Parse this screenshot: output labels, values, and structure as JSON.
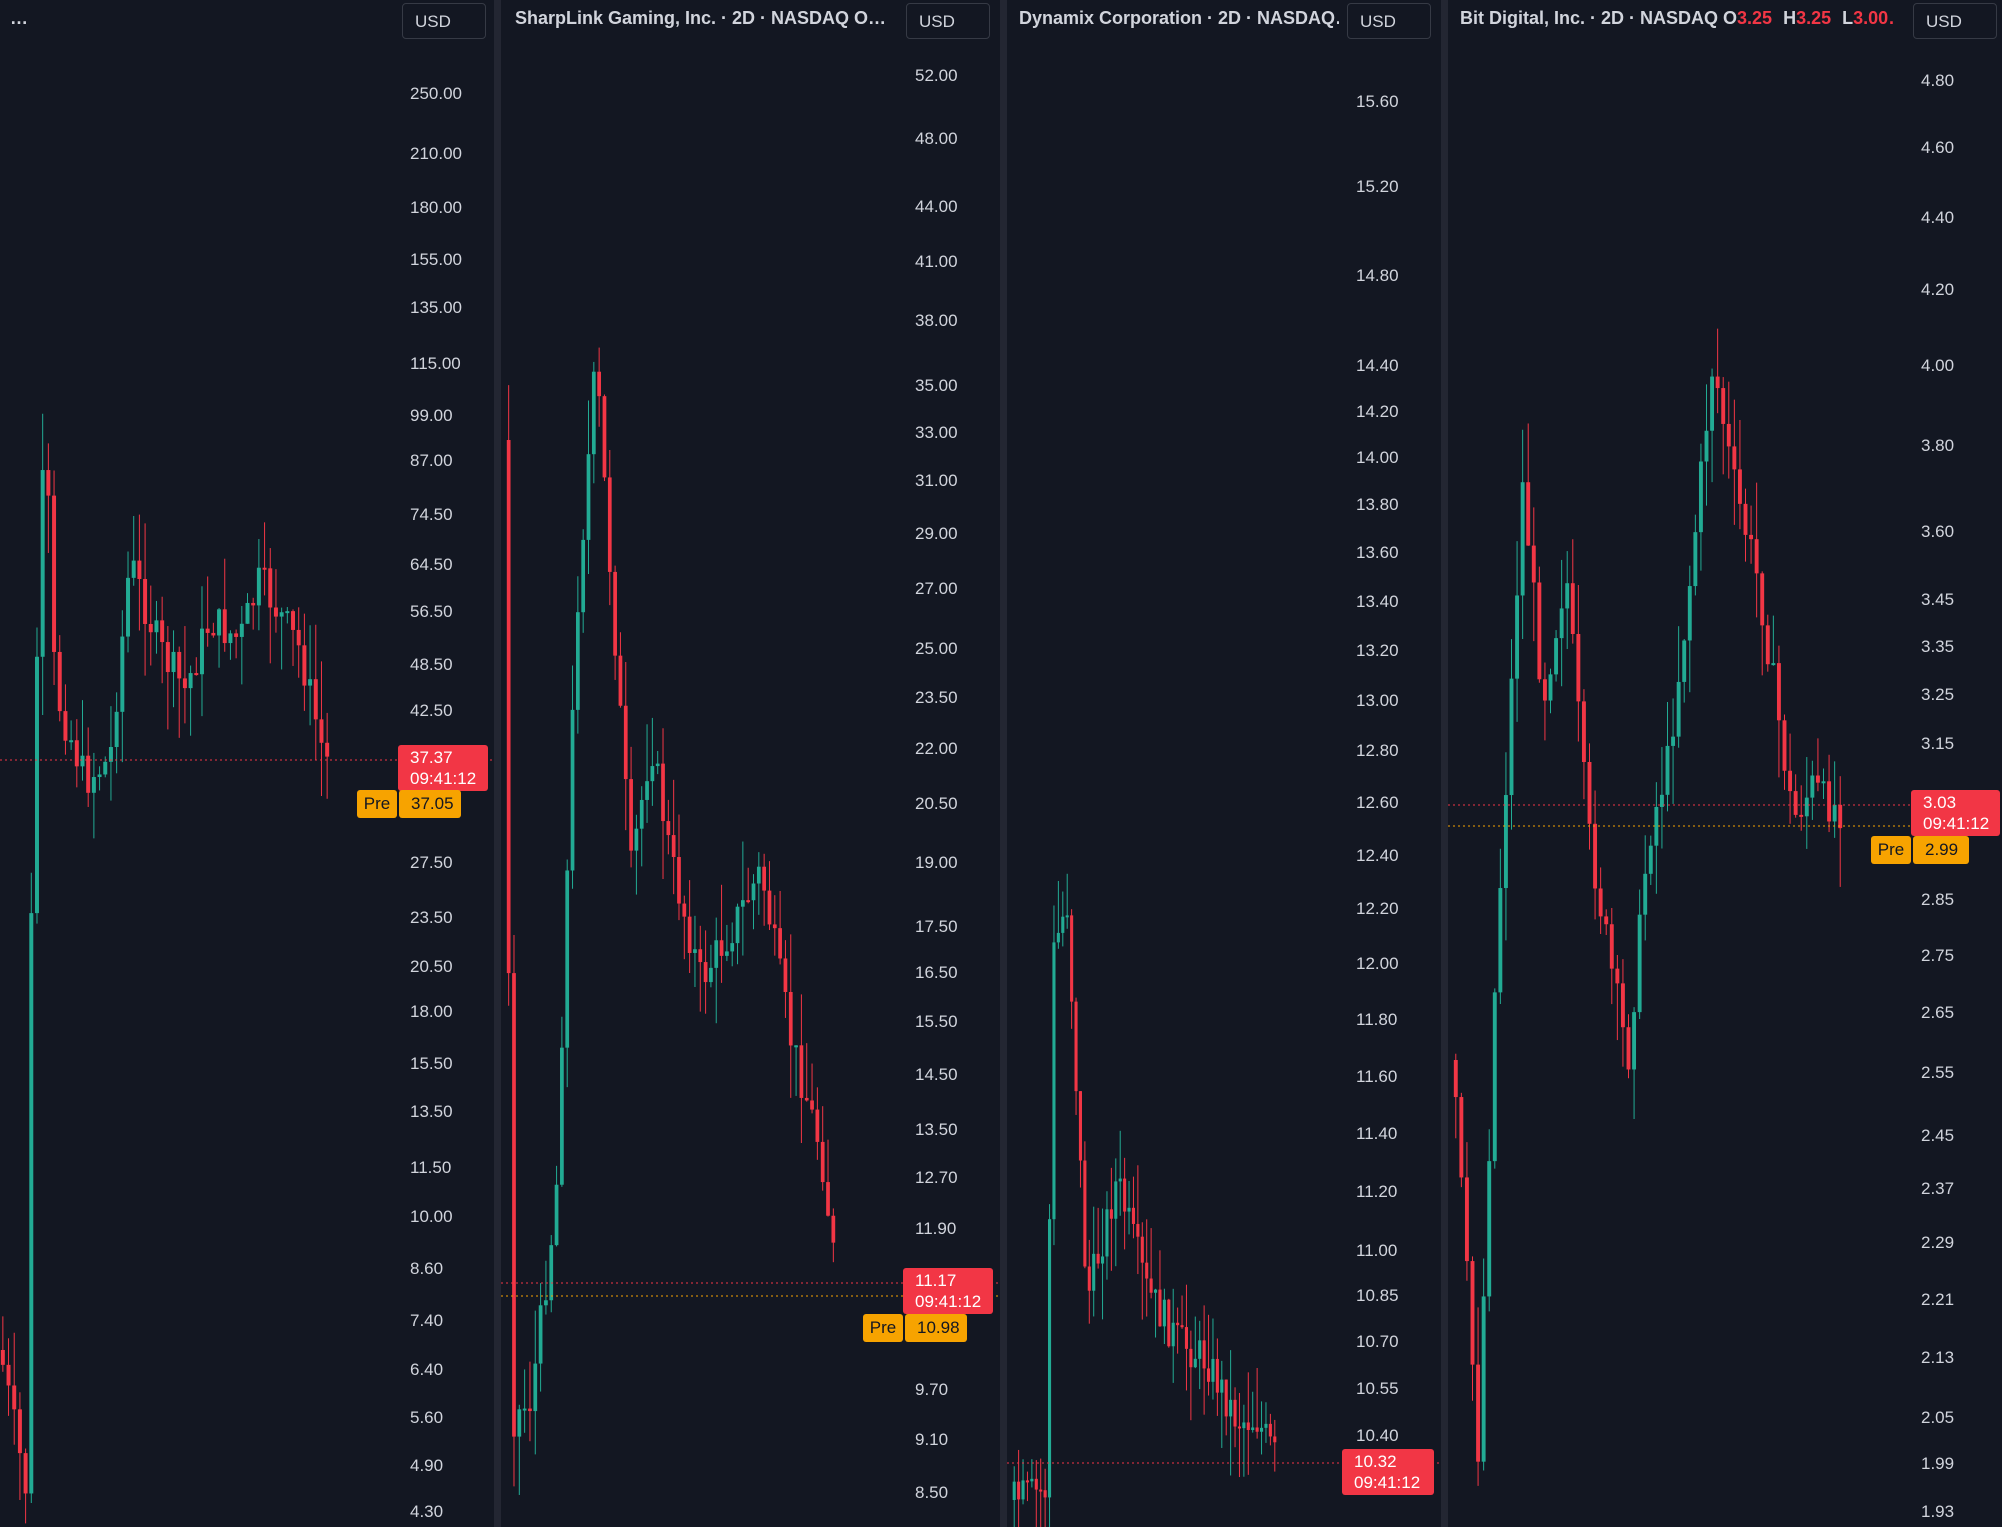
{
  "colors": {
    "up": "#22ab94",
    "down": "#f23645",
    "pre": "#f7a300",
    "background": "#131722"
  },
  "panes": [
    {
      "title": "…",
      "ohlc": null,
      "currency": "USD",
      "axis_labels": [
        "250.00",
        "210.00",
        "180.00",
        "155.00",
        "135.00",
        "115.00",
        "99.00",
        "87.00",
        "74.50",
        "64.50",
        "56.50",
        "48.50",
        "42.50",
        "27.50",
        "23.50",
        "20.50",
        "18.00",
        "15.50",
        "13.50",
        "11.50",
        "10.00",
        "8.60",
        "7.40",
        "6.40",
        "5.60",
        "4.90",
        "4.30"
      ],
      "last_price": "37.37",
      "countdown": "09:41:12",
      "pre_label": "Pre",
      "pre_price": "37.05"
    },
    {
      "title": "SharpLink Gaming, Inc. · 2D · NASDAQ  O…",
      "ohlc": null,
      "currency": "USD",
      "axis_labels": [
        "52.00",
        "48.00",
        "44.00",
        "41.00",
        "38.00",
        "35.00",
        "33.00",
        "31.00",
        "29.00",
        "27.00",
        "25.00",
        "23.50",
        "22.00",
        "20.50",
        "19.00",
        "17.50",
        "16.50",
        "15.50",
        "14.50",
        "13.50",
        "12.70",
        "11.90",
        "9.70",
        "9.10",
        "8.50"
      ],
      "last_price": "11.17",
      "countdown": "09:41:12",
      "pre_label": "Pre",
      "pre_price": "10.98"
    },
    {
      "title": "Dynamix Corporation · 2D · NASDAQ…",
      "ohlc": null,
      "currency": "USD",
      "axis_labels": [
        "15.60",
        "15.20",
        "14.80",
        "14.40",
        "14.20",
        "14.00",
        "13.80",
        "13.60",
        "13.40",
        "13.20",
        "13.00",
        "12.80",
        "12.60",
        "12.40",
        "12.20",
        "12.00",
        "11.80",
        "11.60",
        "11.40",
        "11.20",
        "11.00",
        "10.85",
        "10.70",
        "10.55",
        "10.40"
      ],
      "last_price": "10.32",
      "countdown": "09:41:12",
      "pre_label": null,
      "pre_price": null
    },
    {
      "title": "Bit Digital, Inc. · 2D · NASDAQ ",
      "ohlc": {
        "o_label": "O",
        "o": "3.25",
        "h_label": "H",
        "h": "3.25",
        "l_label": "L",
        "l": "3.00…"
      },
      "currency": "USD",
      "axis_labels": [
        "4.80",
        "4.60",
        "4.40",
        "4.20",
        "4.00",
        "3.80",
        "3.60",
        "3.45",
        "3.35",
        "3.25",
        "3.15",
        "2.85",
        "2.75",
        "2.65",
        "2.55",
        "2.45",
        "2.37",
        "2.29",
        "2.21",
        "2.13",
        "2.05",
        "1.99",
        "1.93"
      ],
      "last_price": "3.03",
      "countdown": "09:41:12",
      "pre_label": "Pre",
      "pre_price": "2.99"
    }
  ]
}
